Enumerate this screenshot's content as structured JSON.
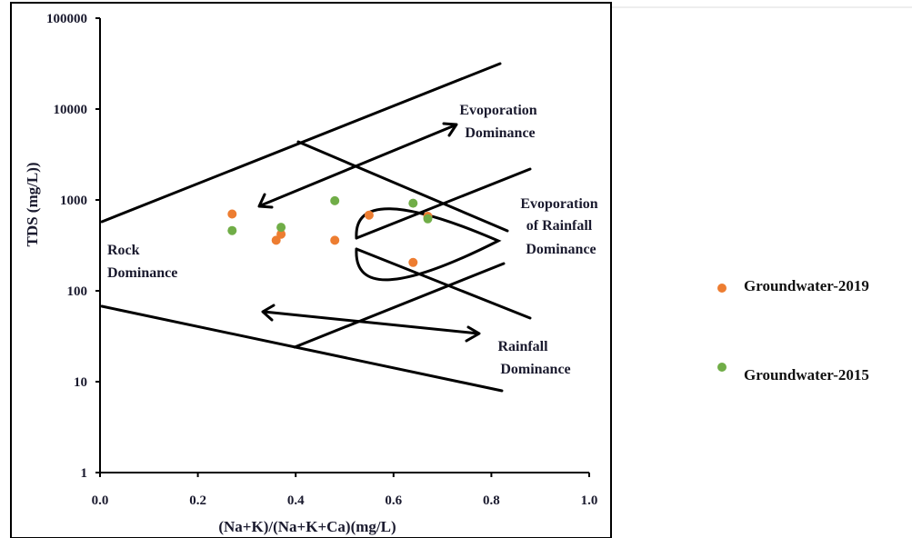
{
  "chart_data": {
    "type": "scatter",
    "title": "",
    "xlabel": "(Na+K)/(Na+K+Ca)(mg/L)",
    "ylabel": "TDS (mg/L))",
    "xlim": [
      0.0,
      1.0
    ],
    "ylim": [
      1,
      100000
    ],
    "y_scale": "log",
    "x_ticks": [
      "0.0",
      "0.2",
      "0.4",
      "0.6",
      "0.8",
      "1.0"
    ],
    "y_ticks": [
      "1",
      "10",
      "100",
      "1000",
      "10000",
      "100000"
    ],
    "grid": false,
    "legend_position": "right",
    "series": [
      {
        "name": "Groundwater-2019",
        "color": "#ed7d31",
        "points": [
          {
            "x": 0.27,
            "y": 700
          },
          {
            "x": 0.36,
            "y": 360
          },
          {
            "x": 0.37,
            "y": 420
          },
          {
            "x": 0.48,
            "y": 360
          },
          {
            "x": 0.55,
            "y": 680
          },
          {
            "x": 0.64,
            "y": 205
          },
          {
            "x": 0.67,
            "y": 660
          }
        ]
      },
      {
        "name": "Groundwater-2015",
        "color": "#70ad47",
        "points": [
          {
            "x": 0.27,
            "y": 460
          },
          {
            "x": 0.37,
            "y": 500
          },
          {
            "x": 0.48,
            "y": 980
          },
          {
            "x": 0.64,
            "y": 920
          },
          {
            "x": 0.67,
            "y": 620
          }
        ]
      }
    ],
    "annotations": [
      {
        "id": "evaporation",
        "lines": [
          "Evoporation",
          "Dominance"
        ]
      },
      {
        "id": "evaporation-rainfall",
        "lines": [
          "Evoporation",
          "of Rainfall",
          "Dominance"
        ]
      },
      {
        "id": "rock",
        "lines": [
          "Rock",
          "Dominance"
        ]
      },
      {
        "id": "rainfall",
        "lines": [
          "Rainfall",
          "Dominance"
        ]
      }
    ]
  }
}
